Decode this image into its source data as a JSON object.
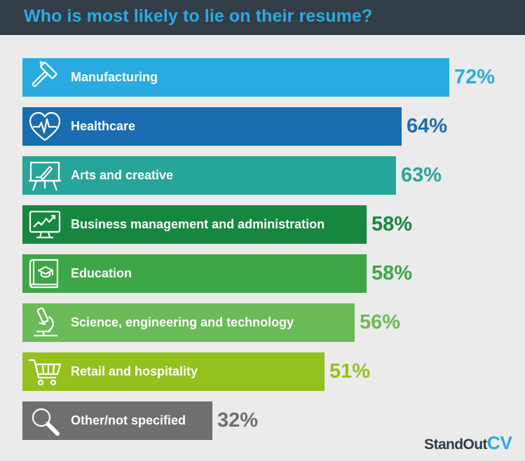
{
  "header": {
    "title": "Who is most likely to lie on their resume?"
  },
  "chart_data": {
    "type": "bar",
    "orientation": "horizontal",
    "title": "Who is most likely to lie on their resume?",
    "xlim": [
      0,
      72
    ],
    "categories": [
      "Manufacturing",
      "Healthcare",
      "Arts and creative",
      "Business management and administration",
      "Education",
      "Science, engineering and technology",
      "Retail and hospitality",
      "Other/not specified"
    ],
    "values": [
      72,
      64,
      63,
      58,
      58,
      56,
      51,
      32
    ],
    "value_labels": [
      "72%",
      "64%",
      "63%",
      "58%",
      "58%",
      "56%",
      "51%",
      "32%"
    ],
    "unit": "%",
    "colors": [
      "#29abe2",
      "#1a6db0",
      "#27a59a",
      "#17873f",
      "#3da747",
      "#6abb57",
      "#95c11f",
      "#6f6f6f"
    ],
    "icons": [
      "hammer-icon",
      "heart-pulse-icon",
      "easel-icon",
      "monitor-chart-icon",
      "book-grad-cap-icon",
      "microscope-icon",
      "shopping-cart-icon",
      "magnifier-icon"
    ],
    "grid": false,
    "legend": "none"
  },
  "footer": {
    "brand_part1": "StandOut",
    "brand_part2": "CV"
  }
}
